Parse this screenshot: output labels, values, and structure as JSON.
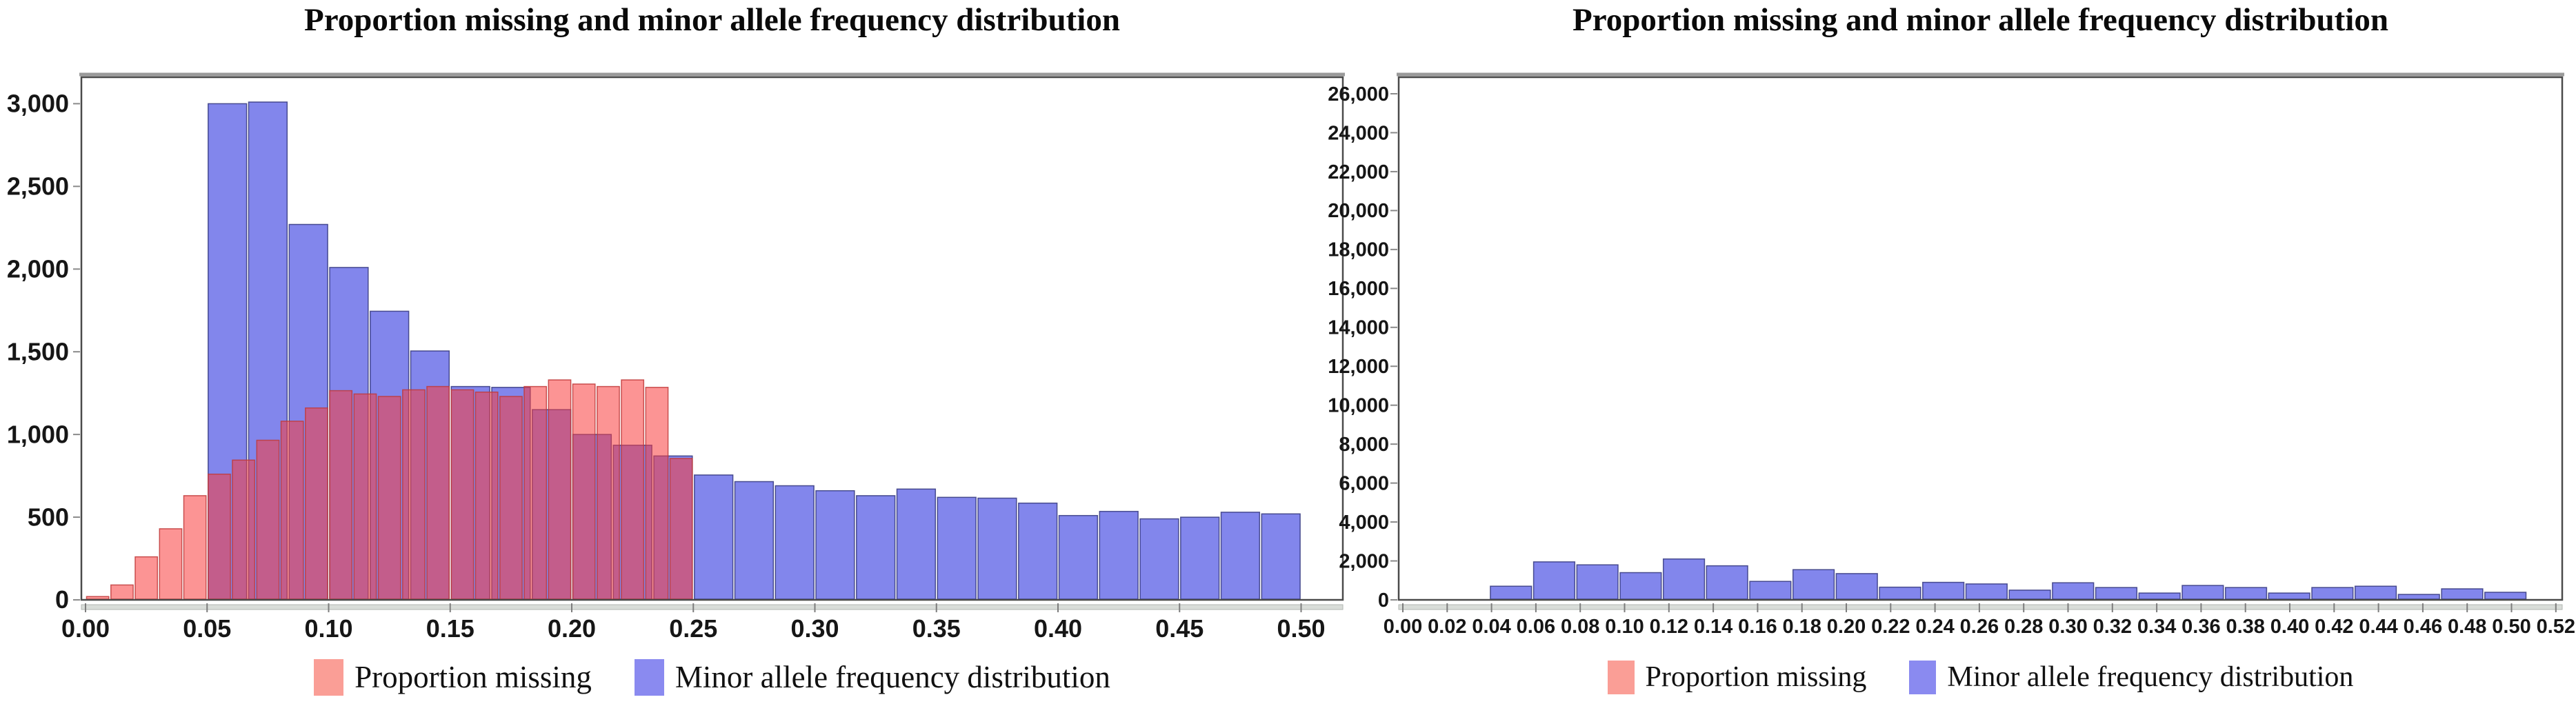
{
  "page": {
    "background": "#ffffff"
  },
  "chart_data": [
    {
      "id": "left",
      "type": "bar",
      "title": "Proportion missing and minor allele frequency distribution",
      "xlim": [
        0,
        0.517
      ],
      "ylim": [
        0,
        3160
      ],
      "grid": false,
      "legend_position": "bottom",
      "x_tick_labels": [
        "0.00",
        "0.05",
        "0.10",
        "0.15",
        "0.20",
        "0.25",
        "0.30",
        "0.35",
        "0.40",
        "0.45",
        "0.50"
      ],
      "y_tick_labels": [
        "0",
        "500",
        "1,000",
        "1,500",
        "2,000",
        "2,500",
        "3,000"
      ],
      "legend": [
        {
          "label": "Proportion missing",
          "color": "#fa9e96"
        },
        {
          "label": "Minor allele frequency distribution",
          "color": "#8a8af0"
        }
      ],
      "series": [
        {
          "name": "Minor allele frequency distribution",
          "color": "#8286ec",
          "stroke": "#34377e",
          "opacity": 1,
          "bin_start": 0.05,
          "bin_width": 0.016667,
          "values": [
            3000,
            3010,
            2270,
            2010,
            1745,
            1505,
            1290,
            1285,
            1150,
            1000,
            935,
            870,
            755,
            715,
            690,
            660,
            630,
            670,
            620,
            615,
            585,
            510,
            535,
            490,
            500,
            530,
            520
          ]
        },
        {
          "name": "Proportion missing",
          "color": "#fa3c3c",
          "stroke": "#c03a3a",
          "opacity": 0.55,
          "bin_start": 0.0,
          "bin_width": 0.01,
          "values": [
            20,
            90,
            260,
            430,
            630,
            760,
            845,
            965,
            1080,
            1160,
            1265,
            1245,
            1230,
            1270,
            1290,
            1270,
            1256,
            1230,
            1290,
            1330,
            1305,
            1290,
            1330,
            1285,
            855
          ]
        }
      ]
    },
    {
      "id": "right",
      "type": "bar",
      "title": "Proportion missing and minor allele frequency distribution",
      "xlim": [
        -0.002,
        0.523
      ],
      "ylim": [
        0,
        26850
      ],
      "grid": false,
      "legend_position": "bottom",
      "x_tick_labels": [
        "0.00",
        "0.02",
        "0.04",
        "0.06",
        "0.08",
        "0.10",
        "0.12",
        "0.14",
        "0.16",
        "0.18",
        "0.20",
        "0.22",
        "0.24",
        "0.26",
        "0.28",
        "0.30",
        "0.32",
        "0.34",
        "0.36",
        "0.38",
        "0.40",
        "0.42",
        "0.44",
        "0.46",
        "0.48",
        "0.50",
        "0.52"
      ],
      "y_tick_labels": [
        "0",
        "2,000",
        "4,000",
        "6,000",
        "8,000",
        "10,000",
        "12,000",
        "14,000",
        "16,000",
        "18,000",
        "20,000",
        "22,000",
        "24,000",
        "26,000"
      ],
      "legend": [
        {
          "label": "Proportion missing",
          "color": "#fa9e96"
        },
        {
          "label": "Minor allele frequency distribution",
          "color": "#8a8af0"
        }
      ],
      "series": [
        {
          "name": "Minor allele frequency distribution",
          "color": "#8286ec",
          "stroke": "#34377e",
          "opacity": 1,
          "bin_start": 0.039,
          "bin_width": 0.0195,
          "values": [
            700,
            1950,
            1800,
            1400,
            2100,
            1750,
            950,
            1550,
            1350,
            650,
            900,
            820,
            500,
            880,
            635,
            350,
            740,
            635,
            350,
            635,
            700,
            280,
            565,
            390
          ]
        }
      ]
    }
  ]
}
